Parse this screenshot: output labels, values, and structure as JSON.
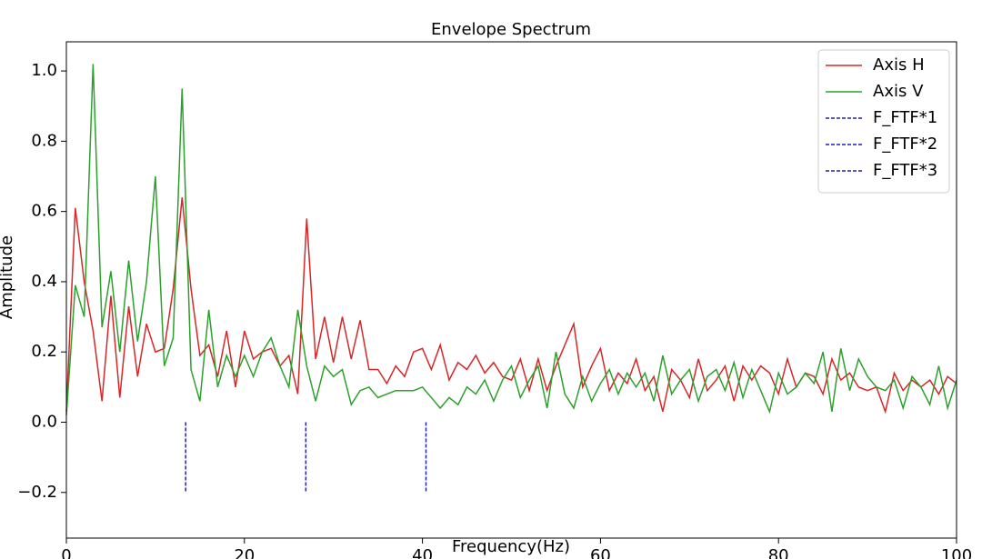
{
  "chart_data": {
    "type": "line",
    "title": "Envelope Spectrum",
    "xlabel": "Frequency(Hz)",
    "ylabel": "Amplitude",
    "x": [
      0,
      1,
      2,
      3,
      4,
      5,
      6,
      7,
      8,
      9,
      10,
      11,
      12,
      13,
      14,
      15,
      16,
      17,
      18,
      19,
      20,
      21,
      22,
      23,
      24,
      25,
      26,
      27,
      28,
      29,
      30,
      31,
      32,
      33,
      34,
      35,
      36,
      37,
      38,
      39,
      40,
      41,
      42,
      43,
      44,
      45,
      46,
      47,
      48,
      49,
      50,
      51,
      52,
      53,
      54,
      55,
      56,
      57,
      58,
      59,
      60,
      61,
      62,
      63,
      64,
      65,
      66,
      67,
      68,
      69,
      70,
      71,
      72,
      73,
      74,
      75,
      76,
      77,
      78,
      79,
      80,
      81,
      82,
      83,
      84,
      85,
      86,
      87,
      88,
      89,
      90,
      91,
      92,
      93,
      94,
      95,
      96,
      97,
      98,
      99,
      100
    ],
    "series": [
      {
        "name": "Axis H",
        "color": "#d62728",
        "values": [
          0.03,
          0.61,
          0.4,
          0.26,
          0.06,
          0.36,
          0.07,
          0.33,
          0.13,
          0.28,
          0.2,
          0.21,
          0.38,
          0.64,
          0.38,
          0.19,
          0.22,
          0.13,
          0.26,
          0.1,
          0.26,
          0.18,
          0.2,
          0.21,
          0.16,
          0.19,
          0.08,
          0.58,
          0.18,
          0.3,
          0.17,
          0.3,
          0.18,
          0.29,
          0.15,
          0.15,
          0.11,
          0.16,
          0.13,
          0.2,
          0.21,
          0.15,
          0.22,
          0.12,
          0.17,
          0.15,
          0.19,
          0.14,
          0.17,
          0.13,
          0.12,
          0.18,
          0.09,
          0.18,
          0.09,
          0.16,
          0.22,
          0.28,
          0.1,
          0.16,
          0.21,
          0.09,
          0.14,
          0.11,
          0.18,
          0.09,
          0.13,
          0.03,
          0.15,
          0.12,
          0.07,
          0.18,
          0.09,
          0.12,
          0.16,
          0.06,
          0.16,
          0.12,
          0.16,
          0.14,
          0.08,
          0.18,
          0.1,
          0.14,
          0.13,
          0.08,
          0.18,
          0.12,
          0.14,
          0.1,
          0.09,
          0.1,
          0.03,
          0.14,
          0.09,
          0.12,
          0.1,
          0.12,
          0.08,
          0.13,
          0.11
        ]
      },
      {
        "name": "Axis V",
        "color": "#2ca02c",
        "values": [
          0.02,
          0.39,
          0.3,
          1.02,
          0.27,
          0.43,
          0.2,
          0.46,
          0.23,
          0.4,
          0.7,
          0.16,
          0.24,
          0.95,
          0.15,
          0.06,
          0.32,
          0.1,
          0.19,
          0.13,
          0.19,
          0.13,
          0.2,
          0.24,
          0.16,
          0.1,
          0.32,
          0.16,
          0.06,
          0.16,
          0.13,
          0.15,
          0.05,
          0.09,
          0.1,
          0.07,
          0.08,
          0.09,
          0.09,
          0.09,
          0.1,
          0.07,
          0.04,
          0.07,
          0.05,
          0.1,
          0.08,
          0.12,
          0.06,
          0.12,
          0.16,
          0.07,
          0.12,
          0.16,
          0.04,
          0.2,
          0.08,
          0.04,
          0.13,
          0.06,
          0.11,
          0.15,
          0.08,
          0.14,
          0.1,
          0.14,
          0.06,
          0.19,
          0.08,
          0.12,
          0.15,
          0.06,
          0.13,
          0.15,
          0.09,
          0.17,
          0.07,
          0.15,
          0.09,
          0.03,
          0.14,
          0.08,
          0.1,
          0.14,
          0.11,
          0.2,
          0.03,
          0.21,
          0.09,
          0.18,
          0.13,
          0.1,
          0.09,
          0.12,
          0.04,
          0.13,
          0.1,
          0.05,
          0.16,
          0.04,
          0.12
        ]
      },
      {
        "name": "F_FTF*1",
        "color": "#1f1fb4",
        "dashed": true,
        "x": [
          13.4,
          13.4
        ],
        "values": [
          0,
          -0.2
        ]
      },
      {
        "name": "F_FTF*2",
        "color": "#1f1fb4",
        "dashed": true,
        "x": [
          26.9,
          26.9
        ],
        "values": [
          0,
          -0.2
        ]
      },
      {
        "name": "F_FTF*3",
        "color": "#1f1fb4",
        "dashed": true,
        "x": [
          40.4,
          40.4
        ],
        "values": [
          0,
          -0.2
        ]
      }
    ],
    "xlim": [
      0,
      100
    ],
    "xticks": [
      0,
      20,
      40,
      60,
      80,
      100
    ],
    "ylim": [
      -0.33,
      1.083
    ],
    "yticks": [
      {
        "value": -0.2,
        "label": "−0.2"
      },
      {
        "value": 0,
        "label": "0.0"
      },
      {
        "value": 0.2,
        "label": "0.2"
      },
      {
        "value": 0.4,
        "label": "0.4"
      },
      {
        "value": 0.6,
        "label": "0.6"
      },
      {
        "value": 0.8,
        "label": "0.8"
      },
      {
        "value": 1.0,
        "label": "1.0"
      }
    ],
    "legend": "upper right",
    "grid": false
  }
}
